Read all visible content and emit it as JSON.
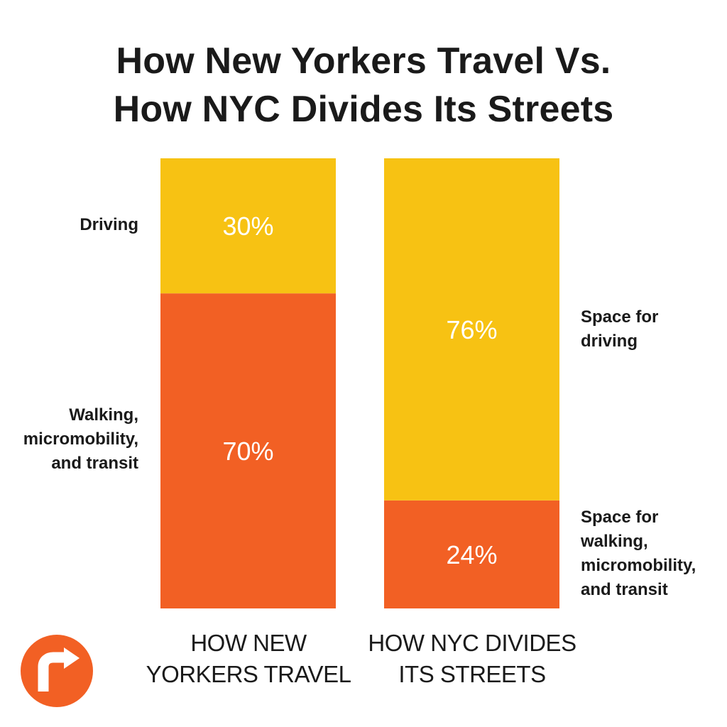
{
  "title": {
    "line1": "How New Yorkers Travel Vs.",
    "line2": "How NYC Divides Its Streets"
  },
  "colors": {
    "driving": "#F7C213",
    "walking": "#F26024",
    "text": "#1a1a1a",
    "bar_text": "#ffffff",
    "logo": "#F26024"
  },
  "logo": {
    "icon": "turn-arrow-logo-icon"
  },
  "left_labels": {
    "driving": "Driving",
    "walking": [
      "Walking,",
      "micromobility,",
      "and transit"
    ]
  },
  "right_labels": {
    "driving": [
      "Space for",
      "driving"
    ],
    "walking": [
      "Space for",
      "walking,",
      "micromobility,",
      "and transit"
    ]
  },
  "chart_data": {
    "type": "bar",
    "stacked": true,
    "categories": [
      [
        "HOW NEW",
        "YORKERS TRAVEL"
      ],
      [
        "HOW NYC DIVIDES",
        "ITS STREETS"
      ]
    ],
    "series": [
      {
        "values": [
          70,
          24
        ],
        "labels": [
          "70%",
          "24%"
        ],
        "color": "#F26024"
      },
      {
        "values": [
          30,
          76
        ],
        "labels": [
          "30%",
          "76%"
        ],
        "color": "#F7C213"
      }
    ],
    "ylim": [
      0,
      100
    ],
    "grid": false,
    "axes": false
  }
}
